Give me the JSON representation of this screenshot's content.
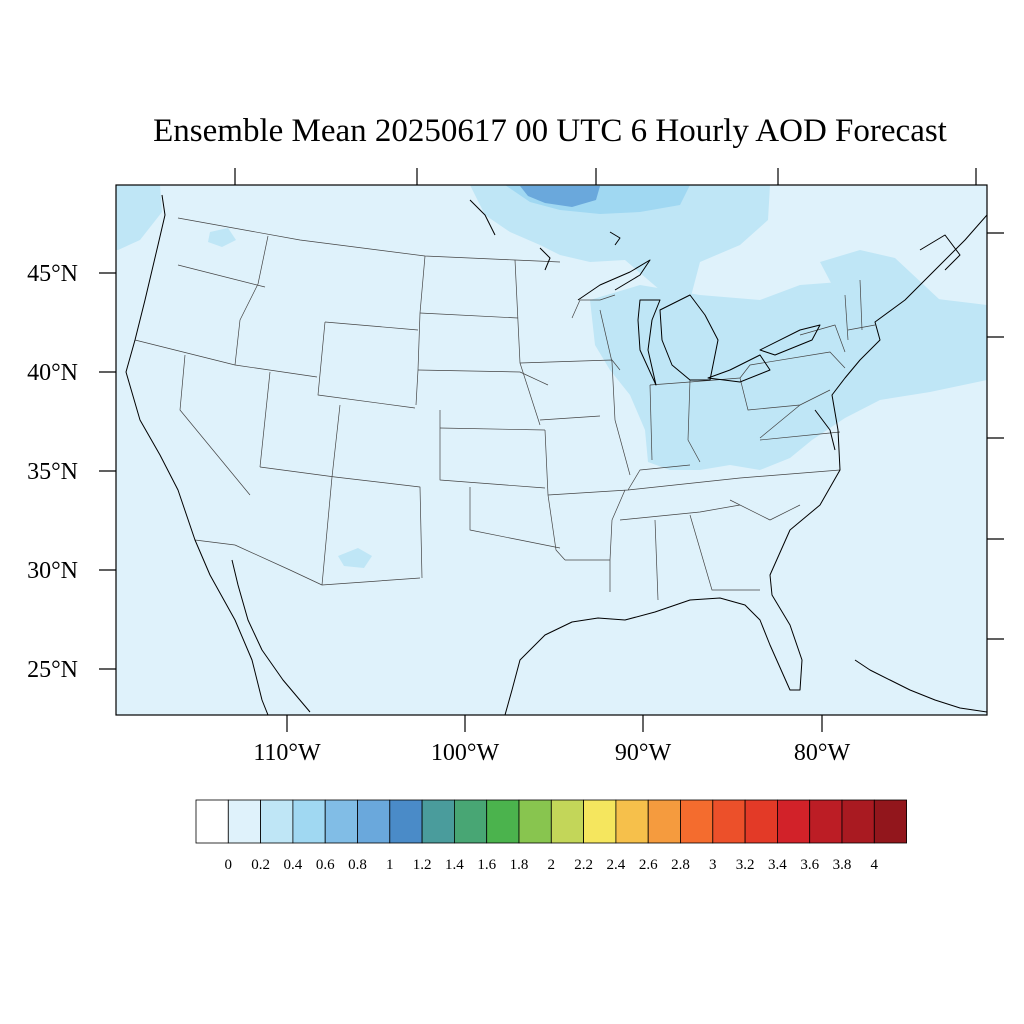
{
  "title": "Ensemble Mean 20250617 00 UTC 6 Hourly AOD Forecast",
  "map": {
    "background_color": "#dff2fb",
    "lat_labels": [
      "45°N",
      "40°N",
      "35°N",
      "30°N",
      "25°N"
    ],
    "lon_labels": [
      "110°W",
      "100°W",
      "90°W",
      "80°W"
    ]
  },
  "colorbar": {
    "colors": [
      "#ffffff",
      "#dff2fb",
      "#bfe6f6",
      "#a0d8f2",
      "#81bde6",
      "#6aa8dc",
      "#4a8bc8",
      "#4a9c9c",
      "#48a674",
      "#4bb34d",
      "#88c54f",
      "#c3d659",
      "#f5e65e",
      "#f6c04b",
      "#f59b3e",
      "#f46c2e",
      "#ec502a",
      "#e33a27",
      "#d22229",
      "#bc1d25",
      "#a91a21",
      "#92161c"
    ],
    "labels": [
      "0",
      "0.2",
      "0.4",
      "0.6",
      "0.8",
      "1",
      "1.2",
      "1.4",
      "1.6",
      "1.8",
      "2",
      "2.2",
      "2.4",
      "2.6",
      "2.8",
      "3",
      "3.2",
      "3.4",
      "3.6",
      "3.8",
      "4"
    ]
  }
}
